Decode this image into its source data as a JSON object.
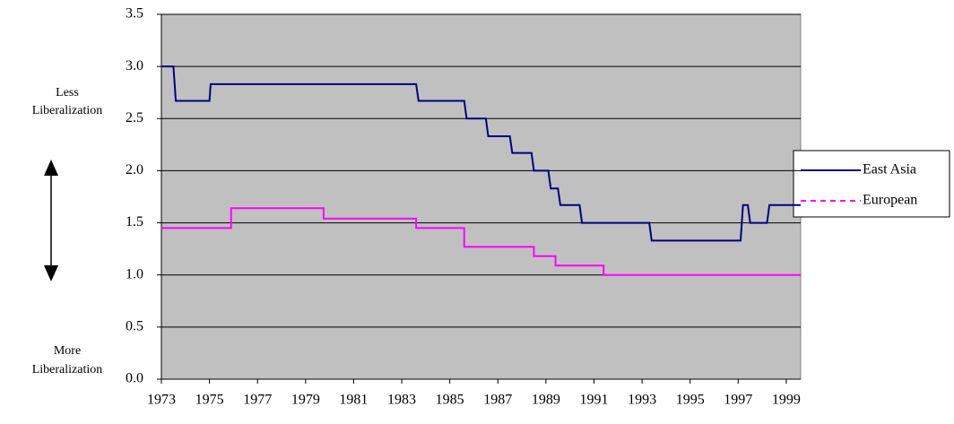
{
  "chart_data": {
    "type": "line",
    "annotations": [
      "Less",
      "Liberalization",
      "More",
      "Liberalization"
    ],
    "xlim": [
      1973,
      1999.6
    ],
    "xticks": [
      1973,
      1975,
      1977,
      1979,
      1981,
      1983,
      1985,
      1987,
      1989,
      1991,
      1993,
      1995,
      1997,
      1999
    ],
    "ylim": [
      0,
      3.5
    ],
    "yticks": [
      {
        "value": 0,
        "label": "0.0"
      },
      {
        "value": 0.5,
        "label": "0.5"
      },
      {
        "value": 1,
        "label": "1.0"
      },
      {
        "value": 1.5,
        "label": "1.5"
      },
      {
        "value": 2,
        "label": "2.0"
      },
      {
        "value": 2.5,
        "label": "2.5"
      },
      {
        "value": 3,
        "label": "3.0"
      },
      {
        "value": 3.5,
        "label": "3.5"
      }
    ],
    "grid": true,
    "series": [
      {
        "name": "East Asia",
        "color": "#000080",
        "dash": false,
        "x": [
          1973,
          1973.5,
          1973.6,
          1975,
          1975.05,
          1983.6,
          1983.7,
          1985.6,
          1985.7,
          1986.5,
          1986.6,
          1987.5,
          1987.6,
          1988.4,
          1988.5,
          1989.1,
          1989.2,
          1989.5,
          1989.6,
          1990.4,
          1990.5,
          1993.3,
          1993.4,
          1997.1,
          1997.2,
          1997.4,
          1997.5,
          1998.2,
          1998.3,
          1999.6
        ],
        "values": [
          3.0,
          3.0,
          2.67,
          2.67,
          2.83,
          2.83,
          2.67,
          2.67,
          2.5,
          2.5,
          2.33,
          2.33,
          2.17,
          2.17,
          2.0,
          2.0,
          1.83,
          1.83,
          1.67,
          1.67,
          1.5,
          1.5,
          1.33,
          1.33,
          1.67,
          1.67,
          1.5,
          1.5,
          1.67,
          1.67
        ]
      },
      {
        "name": "European",
        "color": "#ff00ff",
        "dash": true,
        "x": [
          1973,
          1975.9,
          1975.9,
          1979.75,
          1979.75,
          1983.6,
          1983.6,
          1985.6,
          1985.6,
          1988.5,
          1988.5,
          1989.4,
          1989.4,
          1991.4,
          1991.4,
          1999.6
        ],
        "values": [
          1.45,
          1.45,
          1.64,
          1.64,
          1.54,
          1.54,
          1.45,
          1.45,
          1.27,
          1.27,
          1.18,
          1.18,
          1.09,
          1.09,
          1.0,
          1.0
        ]
      }
    ]
  }
}
